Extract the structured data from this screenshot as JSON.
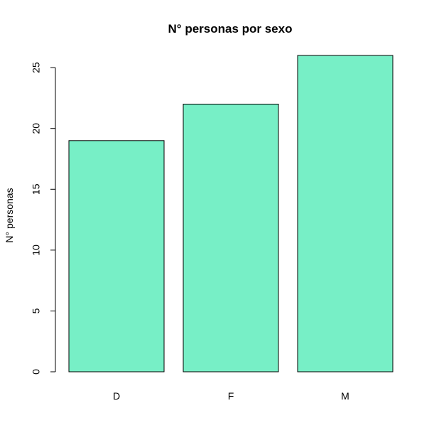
{
  "chart_data": {
    "type": "bar",
    "title": "N° personas por sexo",
    "xlabel": "",
    "ylabel": "N° personas",
    "categories": [
      "D",
      "F",
      "M"
    ],
    "values": [
      19,
      22,
      26
    ],
    "ylim": [
      0,
      26
    ],
    "yticks": [
      0,
      5,
      10,
      15,
      20,
      25
    ],
    "ytick_labels": [
      "0",
      "5",
      "10",
      "15",
      "20",
      "25"
    ],
    "grid": false,
    "legend": "none",
    "bar_color": "#77EFC6",
    "edge_color": "#000000"
  }
}
